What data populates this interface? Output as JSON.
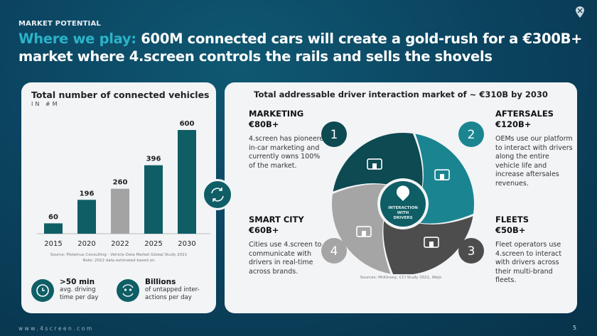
{
  "header": {
    "kicker": "MARKET POTENTIAL",
    "title_highlight": "Where we play:",
    "title_rest": " 600M connected cars will create a gold-rush for a €300B+ market where 4.screen controls the rails and sells the shovels"
  },
  "left_card": {
    "title": "Total number of connected vehicles",
    "subtitle": "IN #M",
    "source_line1": "Source: Ptolemus Consulting - Vehicle Data Market Global Study 2021",
    "source_line2": "Note: 2022 data estimated based on",
    "stats": [
      {
        "value": ">50 min",
        "text1": "avg. driving",
        "text2": "time per day",
        "icon": "clock-icon"
      },
      {
        "value": "Billions",
        "text1": "of untapped inter-",
        "text2": "actions per day",
        "icon": "people-cycle-icon"
      }
    ]
  },
  "chart_data": {
    "type": "bar",
    "title": "Total number of connected vehicles",
    "subtitle": "IN #M",
    "categories": [
      "2015",
      "2020",
      "2022",
      "2025",
      "2030"
    ],
    "values": [
      60,
      196,
      260,
      396,
      600
    ],
    "labels": [
      "60",
      "196",
      "260",
      "396",
      "600"
    ],
    "colors": [
      "#0f5e66",
      "#0f5e66",
      "#a3a3a3",
      "#0f5e66",
      "#0f5e66"
    ],
    "ylim": [
      0,
      600
    ],
    "grid": false
  },
  "right_card": {
    "title": "Total addressable driver interaction market of ~ €310B by 2030",
    "center_label": [
      "INTERACTION",
      "WITH",
      "DRIVERS"
    ],
    "source": "Sources: McKinsey; CCI Study 2021, Wejo",
    "segments": [
      {
        "number": "1",
        "name": "MARKETING",
        "value": "€80B+",
        "text": "4.screen has pioneered in-car marketing and currently owns 100% of the market.",
        "color": "#0d4a52",
        "icon": "store-icon"
      },
      {
        "number": "2",
        "name": "AFTERSALES",
        "value": "€120B+",
        "text": "OEMs use our platform to interact with drivers along the entire vehicle life and increase aftersales revenues.",
        "color": "#1a8591",
        "icon": "car-wrench-icon"
      },
      {
        "number": "3",
        "name": "FLEETS",
        "value": "€50B+",
        "text": "Fleet operators use 4.screen to interact with drivers across their multi-brand fleets.",
        "color": "#4d4d4d",
        "icon": "taxi-icon"
      },
      {
        "number": "4",
        "name": "SMART CITY",
        "value": "€60B+",
        "text": "Cities use 4.screen to communicate with drivers in real-time across brands.",
        "color": "#a5a5a5",
        "icon": "buildings-icon"
      }
    ]
  },
  "footer": {
    "url": "www.4screen.com",
    "page": "5"
  }
}
